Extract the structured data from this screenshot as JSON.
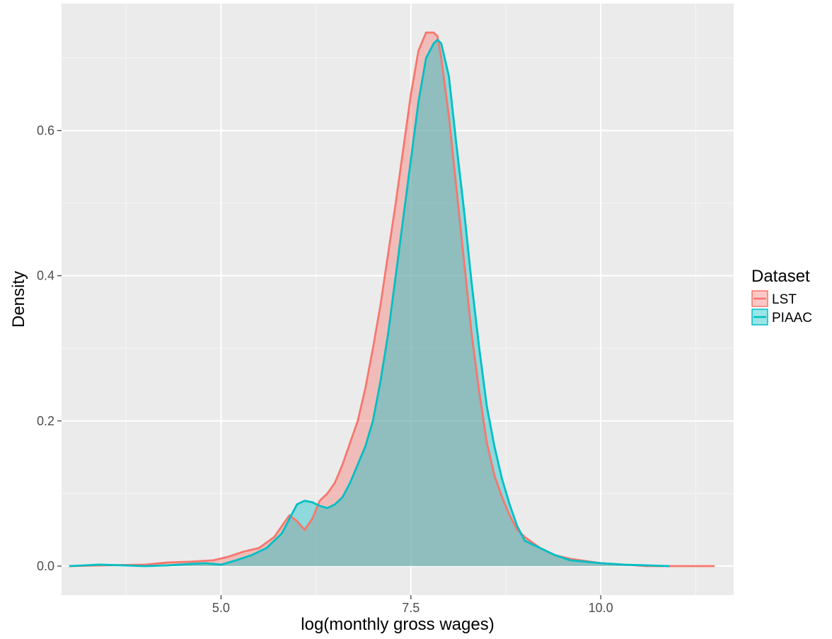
{
  "chart_data": {
    "type": "area",
    "chart_subtype": "density",
    "title": "",
    "xlabel": "log(monthly gross wages)",
    "ylabel": "Density",
    "xlim": [
      2.9,
      11.75
    ],
    "ylim": [
      -0.04,
      0.775
    ],
    "x_ticks": [
      5.0,
      7.5,
      10.0
    ],
    "x_tick_labels": [
      "5.0",
      "7.5",
      "10.0"
    ],
    "y_ticks": [
      0.0,
      0.2,
      0.4,
      0.6
    ],
    "y_tick_labels": [
      "0.0",
      "0.2",
      "0.4",
      "0.6"
    ],
    "grid": true,
    "fill_opacity": 0.4,
    "legend": {
      "title": "Dataset",
      "position": "right"
    },
    "series": [
      {
        "name": "LST",
        "color": "#F8766D",
        "x": [
          3.0,
          3.5,
          4.0,
          4.3,
          4.6,
          4.9,
          5.1,
          5.3,
          5.5,
          5.7,
          5.8,
          5.9,
          6.0,
          6.1,
          6.2,
          6.3,
          6.4,
          6.5,
          6.6,
          6.7,
          6.8,
          6.9,
          7.0,
          7.1,
          7.2,
          7.3,
          7.4,
          7.5,
          7.6,
          7.7,
          7.8,
          7.85,
          7.9,
          8.0,
          8.1,
          8.2,
          8.3,
          8.4,
          8.5,
          8.6,
          8.7,
          8.8,
          8.9,
          9.0,
          9.2,
          9.4,
          9.6,
          9.8,
          10.0,
          10.3,
          10.6,
          11.0,
          11.5
        ],
        "values": [
          0.0,
          0.001,
          0.002,
          0.005,
          0.006,
          0.008,
          0.013,
          0.02,
          0.025,
          0.04,
          0.055,
          0.07,
          0.062,
          0.05,
          0.065,
          0.09,
          0.1,
          0.115,
          0.14,
          0.17,
          0.2,
          0.245,
          0.3,
          0.36,
          0.43,
          0.5,
          0.575,
          0.65,
          0.71,
          0.735,
          0.735,
          0.73,
          0.7,
          0.62,
          0.52,
          0.42,
          0.32,
          0.24,
          0.17,
          0.125,
          0.095,
          0.07,
          0.05,
          0.04,
          0.025,
          0.015,
          0.01,
          0.007,
          0.004,
          0.002,
          0.0,
          0.0,
          0.0
        ]
      },
      {
        "name": "PIAAC",
        "color": "#00BFC4",
        "x": [
          3.0,
          3.4,
          3.7,
          4.0,
          4.3,
          4.6,
          4.8,
          5.0,
          5.2,
          5.4,
          5.6,
          5.8,
          5.9,
          6.0,
          6.1,
          6.2,
          6.3,
          6.4,
          6.5,
          6.6,
          6.7,
          6.8,
          6.9,
          7.0,
          7.1,
          7.2,
          7.3,
          7.4,
          7.5,
          7.6,
          7.7,
          7.8,
          7.85,
          7.9,
          8.0,
          8.1,
          8.2,
          8.3,
          8.4,
          8.5,
          8.6,
          8.7,
          8.8,
          8.9,
          9.0,
          9.2,
          9.4,
          9.6,
          9.8,
          10.0,
          10.3,
          10.6,
          10.9
        ],
        "values": [
          0.0,
          0.002,
          0.001,
          0.0,
          0.001,
          0.003,
          0.004,
          0.002,
          0.008,
          0.015,
          0.025,
          0.045,
          0.065,
          0.085,
          0.09,
          0.088,
          0.083,
          0.08,
          0.085,
          0.095,
          0.115,
          0.14,
          0.165,
          0.2,
          0.255,
          0.32,
          0.4,
          0.48,
          0.56,
          0.64,
          0.7,
          0.72,
          0.725,
          0.72,
          0.675,
          0.58,
          0.49,
          0.39,
          0.3,
          0.22,
          0.165,
          0.12,
          0.085,
          0.055,
          0.035,
          0.025,
          0.015,
          0.008,
          0.006,
          0.004,
          0.002,
          0.001,
          0.0
        ]
      }
    ]
  }
}
